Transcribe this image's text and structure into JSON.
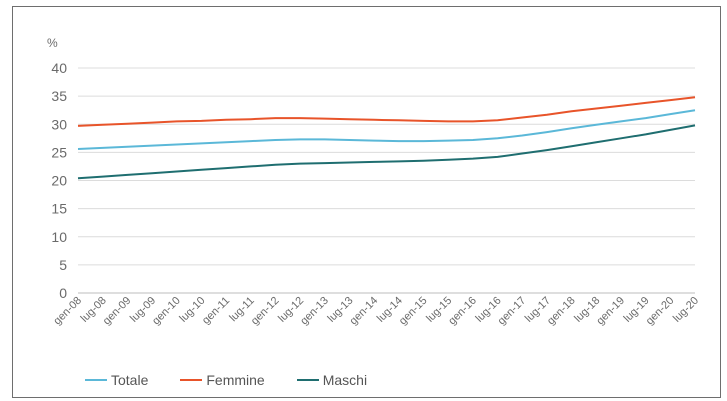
{
  "chart_data": {
    "type": "line",
    "unit_label": "%",
    "ylim": [
      0,
      40
    ],
    "yticks": [
      0,
      5,
      10,
      15,
      20,
      25,
      30,
      35,
      40
    ],
    "grid": true,
    "legend_position": "bottom-left",
    "categories": [
      "gen-08",
      "lug-08",
      "gen-09",
      "lug-09",
      "gen-10",
      "lug-10",
      "gen-11",
      "lug-11",
      "gen-12",
      "lug-12",
      "gen-13",
      "lug-13",
      "gen-14",
      "lug-14",
      "gen-15",
      "lug-15",
      "gen-16",
      "lug-16",
      "gen-17",
      "lug-17",
      "gen-18",
      "lug-18",
      "gen-19",
      "lug-19",
      "gen-20",
      "lug-20"
    ],
    "series": [
      {
        "name": "Totale",
        "color": "#5bb8d8",
        "values": [
          25.6,
          25.8,
          26.0,
          26.2,
          26.4,
          26.6,
          26.8,
          27.0,
          27.2,
          27.3,
          27.3,
          27.2,
          27.1,
          27.0,
          27.0,
          27.1,
          27.2,
          27.5,
          28.0,
          28.6,
          29.3,
          29.9,
          30.5,
          31.1,
          31.8,
          32.5
        ]
      },
      {
        "name": "Femmine",
        "color": "#e8542a",
        "values": [
          29.7,
          29.9,
          30.1,
          30.3,
          30.5,
          30.6,
          30.8,
          30.9,
          31.1,
          31.1,
          31.0,
          30.9,
          30.8,
          30.7,
          30.6,
          30.5,
          30.5,
          30.7,
          31.2,
          31.7,
          32.3,
          32.8,
          33.3,
          33.8,
          34.3,
          34.8
        ]
      },
      {
        "name": "Maschi",
        "color": "#1f6e70",
        "values": [
          20.4,
          20.7,
          21.0,
          21.3,
          21.6,
          21.9,
          22.2,
          22.5,
          22.8,
          23.0,
          23.1,
          23.2,
          23.3,
          23.4,
          23.5,
          23.7,
          23.9,
          24.2,
          24.8,
          25.4,
          26.1,
          26.8,
          27.5,
          28.2,
          29.0,
          29.8
        ]
      }
    ]
  }
}
